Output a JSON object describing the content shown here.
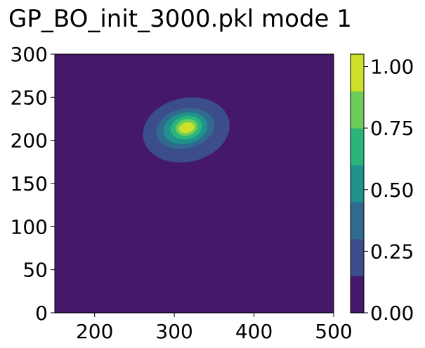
{
  "chart_data": {
    "type": "heatmap",
    "subtype": "filled-contour",
    "title": "GP_BO_init_3000.pkl mode 1",
    "xlim": [
      150,
      500
    ],
    "ylim": [
      0,
      300
    ],
    "xticks": [
      200,
      300,
      400,
      500
    ],
    "yticks": [
      0,
      50,
      100,
      150,
      200,
      250,
      300
    ],
    "colorbar": {
      "range": [
        0,
        1.05
      ],
      "levels": [
        0,
        0.15,
        0.3,
        0.45,
        0.6,
        0.75,
        0.9,
        1.05
      ],
      "ticks": [
        "0.00",
        "0.25",
        "0.50",
        "0.75",
        "1.00"
      ],
      "tick_values": [
        0,
        0.25,
        0.5,
        0.75,
        1.0
      ],
      "colormap": "viridis",
      "colors": [
        "#46186a",
        "#3c4d8b",
        "#306a8e",
        "#21918d",
        "#2ab67a",
        "#6dcc5a",
        "#cde12b"
      ]
    },
    "peak": {
      "x": 316,
      "y": 215,
      "value": 1.0
    },
    "contour_regions": [
      {
        "level": 0.15,
        "x_range": [
          262,
          372
        ],
        "y_range": [
          177,
          251
        ]
      },
      {
        "level": 0.3,
        "x_range": [
          278,
          352
        ],
        "y_range": [
          192,
          238
        ]
      },
      {
        "level": 0.45,
        "x_range": [
          287,
          343
        ],
        "y_range": [
          197,
          233
        ]
      },
      {
        "level": 0.6,
        "x_range": [
          296,
          336
        ],
        "y_range": [
          202,
          229
        ]
      },
      {
        "level": 0.75,
        "x_range": [
          302,
          330
        ],
        "y_range": [
          206,
          225
        ]
      },
      {
        "level": 0.9,
        "x_range": [
          306,
          326
        ],
        "y_range": [
          209,
          221
        ]
      }
    ]
  }
}
